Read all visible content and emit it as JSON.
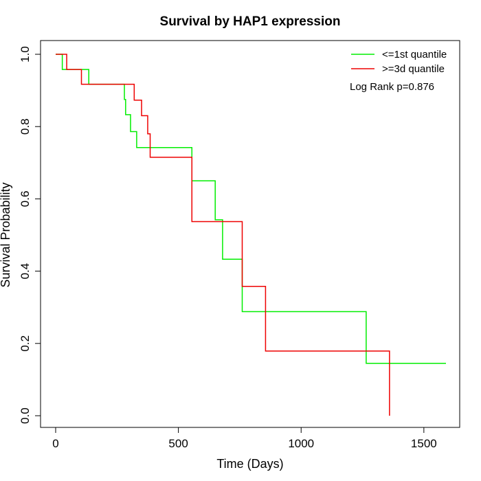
{
  "chart_data": {
    "type": "line",
    "title": "Survival by HAP1 expression",
    "xlabel": "Time (Days)",
    "ylabel": "Survival Probability",
    "xlim": [
      0,
      1590
    ],
    "ylim": [
      0,
      1.0
    ],
    "x_ticks": [
      0,
      500,
      1000,
      1500
    ],
    "y_ticks": [
      0.0,
      0.2,
      0.4,
      0.6,
      0.8,
      1.0
    ],
    "x_tick_labels": [
      "0",
      "500",
      "1000",
      "1500"
    ],
    "y_tick_labels": [
      "0.0",
      "0.2",
      "0.4",
      "0.6",
      "0.8",
      "1.0"
    ],
    "grid": false,
    "legend_position": "top-right",
    "annotation": "Log Rank p=0.876",
    "series": [
      {
        "name": "<=1st quantile",
        "color": "#00ee00",
        "step": true,
        "points": [
          [
            0,
            1.0
          ],
          [
            27,
            1.0
          ],
          [
            27,
            0.958
          ],
          [
            135,
            0.958
          ],
          [
            135,
            0.917
          ],
          [
            280,
            0.917
          ],
          [
            280,
            0.875
          ],
          [
            285,
            0.875
          ],
          [
            285,
            0.833
          ],
          [
            305,
            0.833
          ],
          [
            305,
            0.786
          ],
          [
            330,
            0.786
          ],
          [
            330,
            0.742
          ],
          [
            555,
            0.742
          ],
          [
            555,
            0.65
          ],
          [
            650,
            0.65
          ],
          [
            650,
            0.542
          ],
          [
            680,
            0.542
          ],
          [
            680,
            0.433
          ],
          [
            760,
            0.433
          ],
          [
            760,
            0.288
          ],
          [
            1265,
            0.288
          ],
          [
            1265,
            0.145
          ],
          [
            1590,
            0.145
          ]
        ]
      },
      {
        "name": ">=3d quantile",
        "color": "#ee0000",
        "step": true,
        "points": [
          [
            0,
            1.0
          ],
          [
            45,
            1.0
          ],
          [
            45,
            0.958
          ],
          [
            105,
            0.958
          ],
          [
            105,
            0.917
          ],
          [
            320,
            0.917
          ],
          [
            320,
            0.873
          ],
          [
            350,
            0.873
          ],
          [
            350,
            0.83
          ],
          [
            375,
            0.83
          ],
          [
            375,
            0.78
          ],
          [
            385,
            0.78
          ],
          [
            385,
            0.715
          ],
          [
            555,
            0.715
          ],
          [
            555,
            0.537
          ],
          [
            760,
            0.537
          ],
          [
            760,
            0.358
          ],
          [
            855,
            0.358
          ],
          [
            855,
            0.179
          ],
          [
            1360,
            0.179
          ],
          [
            1360,
            0.0
          ]
        ]
      }
    ]
  }
}
